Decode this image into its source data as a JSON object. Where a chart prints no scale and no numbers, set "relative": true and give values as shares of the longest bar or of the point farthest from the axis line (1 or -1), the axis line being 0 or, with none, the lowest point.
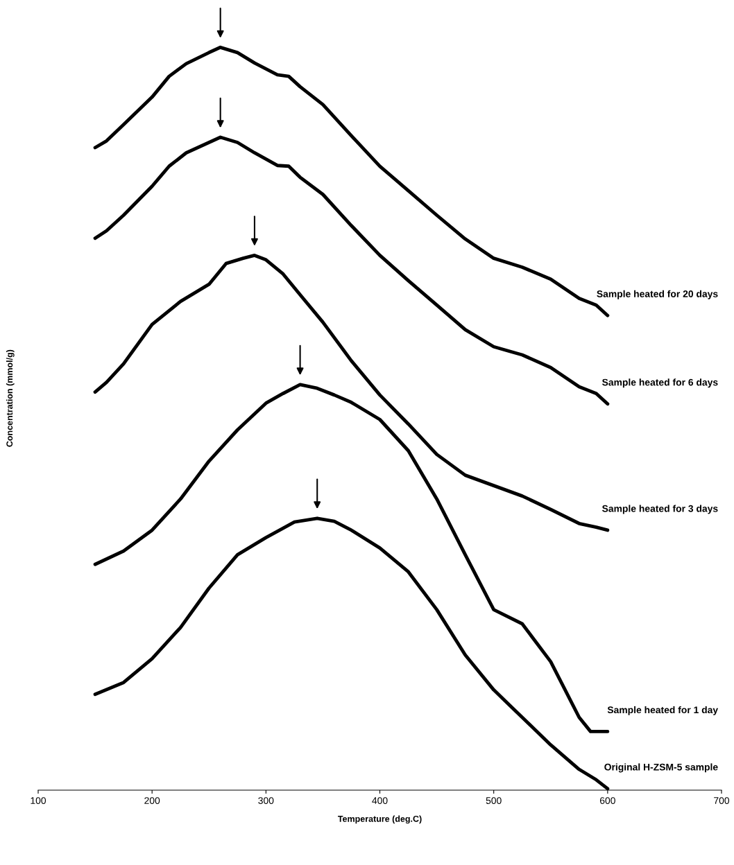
{
  "chart_data": {
    "type": "line",
    "relative": true,
    "xlabel": "Temperature (deg.C)",
    "ylabel": "Concentration (mmol/g)",
    "xlim": [
      100,
      700
    ],
    "xticks": [
      100,
      200,
      300,
      400,
      500,
      600,
      700
    ],
    "grid": false,
    "legend": false,
    "marker": "none",
    "line_style": "solid",
    "series": [
      {
        "name": "Sample heated for 20 days",
        "color": "#000000",
        "x": [
          150,
          160,
          175,
          200,
          215,
          230,
          250,
          260,
          275,
          290,
          310,
          320,
          330,
          350,
          375,
          400,
          425,
          450,
          475,
          500,
          525,
          550,
          575,
          590,
          600
        ],
        "values": [
          0.865,
          0.874,
          0.896,
          0.933,
          0.961,
          0.978,
          0.993,
          1,
          0.993,
          0.979,
          0.963,
          0.961,
          0.947,
          0.923,
          0.881,
          0.84,
          0.807,
          0.774,
          0.742,
          0.716,
          0.704,
          0.688,
          0.662,
          0.653,
          0.639
        ]
      },
      {
        "name": "Sample heated for 6 days",
        "color": "#000000",
        "x": [
          150,
          160,
          175,
          200,
          215,
          230,
          250,
          260,
          275,
          290,
          310,
          320,
          330,
          350,
          375,
          400,
          425,
          450,
          475,
          500,
          525,
          550,
          575,
          590,
          600
        ],
        "values": [
          0.743,
          0.753,
          0.774,
          0.813,
          0.84,
          0.858,
          0.872,
          0.879,
          0.872,
          0.858,
          0.841,
          0.84,
          0.825,
          0.802,
          0.76,
          0.72,
          0.686,
          0.653,
          0.62,
          0.597,
          0.586,
          0.569,
          0.543,
          0.534,
          0.52
        ]
      },
      {
        "name": "Sample heated for 3 days",
        "color": "#000000",
        "x": [
          150,
          160,
          175,
          200,
          225,
          250,
          265,
          280,
          290,
          300,
          315,
          330,
          350,
          375,
          400,
          425,
          450,
          475,
          500,
          525,
          550,
          575,
          590,
          600
        ],
        "values": [
          0.536,
          0.549,
          0.574,
          0.627,
          0.658,
          0.681,
          0.709,
          0.716,
          0.72,
          0.714,
          0.695,
          0.667,
          0.63,
          0.578,
          0.532,
          0.493,
          0.452,
          0.424,
          0.41,
          0.396,
          0.378,
          0.359,
          0.354,
          0.35
        ]
      },
      {
        "name": "Sample heated for 1 day",
        "color": "#000000",
        "x": [
          150,
          175,
          200,
          225,
          250,
          275,
          300,
          315,
          330,
          345,
          360,
          375,
          400,
          425,
          450,
          475,
          500,
          525,
          550,
          575,
          585,
          590,
          600
        ],
        "values": [
          0.304,
          0.322,
          0.35,
          0.392,
          0.443,
          0.485,
          0.521,
          0.534,
          0.546,
          0.541,
          0.532,
          0.522,
          0.499,
          0.457,
          0.392,
          0.317,
          0.243,
          0.224,
          0.173,
          0.098,
          0.079,
          0.079,
          0.079
        ]
      },
      {
        "name": "Original H-ZSM-5 sample",
        "color": "#000000",
        "x": [
          150,
          175,
          200,
          225,
          250,
          275,
          300,
          325,
          345,
          360,
          375,
          400,
          425,
          450,
          475,
          500,
          525,
          550,
          575,
          590,
          600
        ],
        "values": [
          0.129,
          0.145,
          0.177,
          0.219,
          0.272,
          0.317,
          0.34,
          0.361,
          0.366,
          0.362,
          0.35,
          0.326,
          0.294,
          0.243,
          0.182,
          0.135,
          0.098,
          0.061,
          0.028,
          0.014,
          0.002
        ]
      }
    ]
  }
}
